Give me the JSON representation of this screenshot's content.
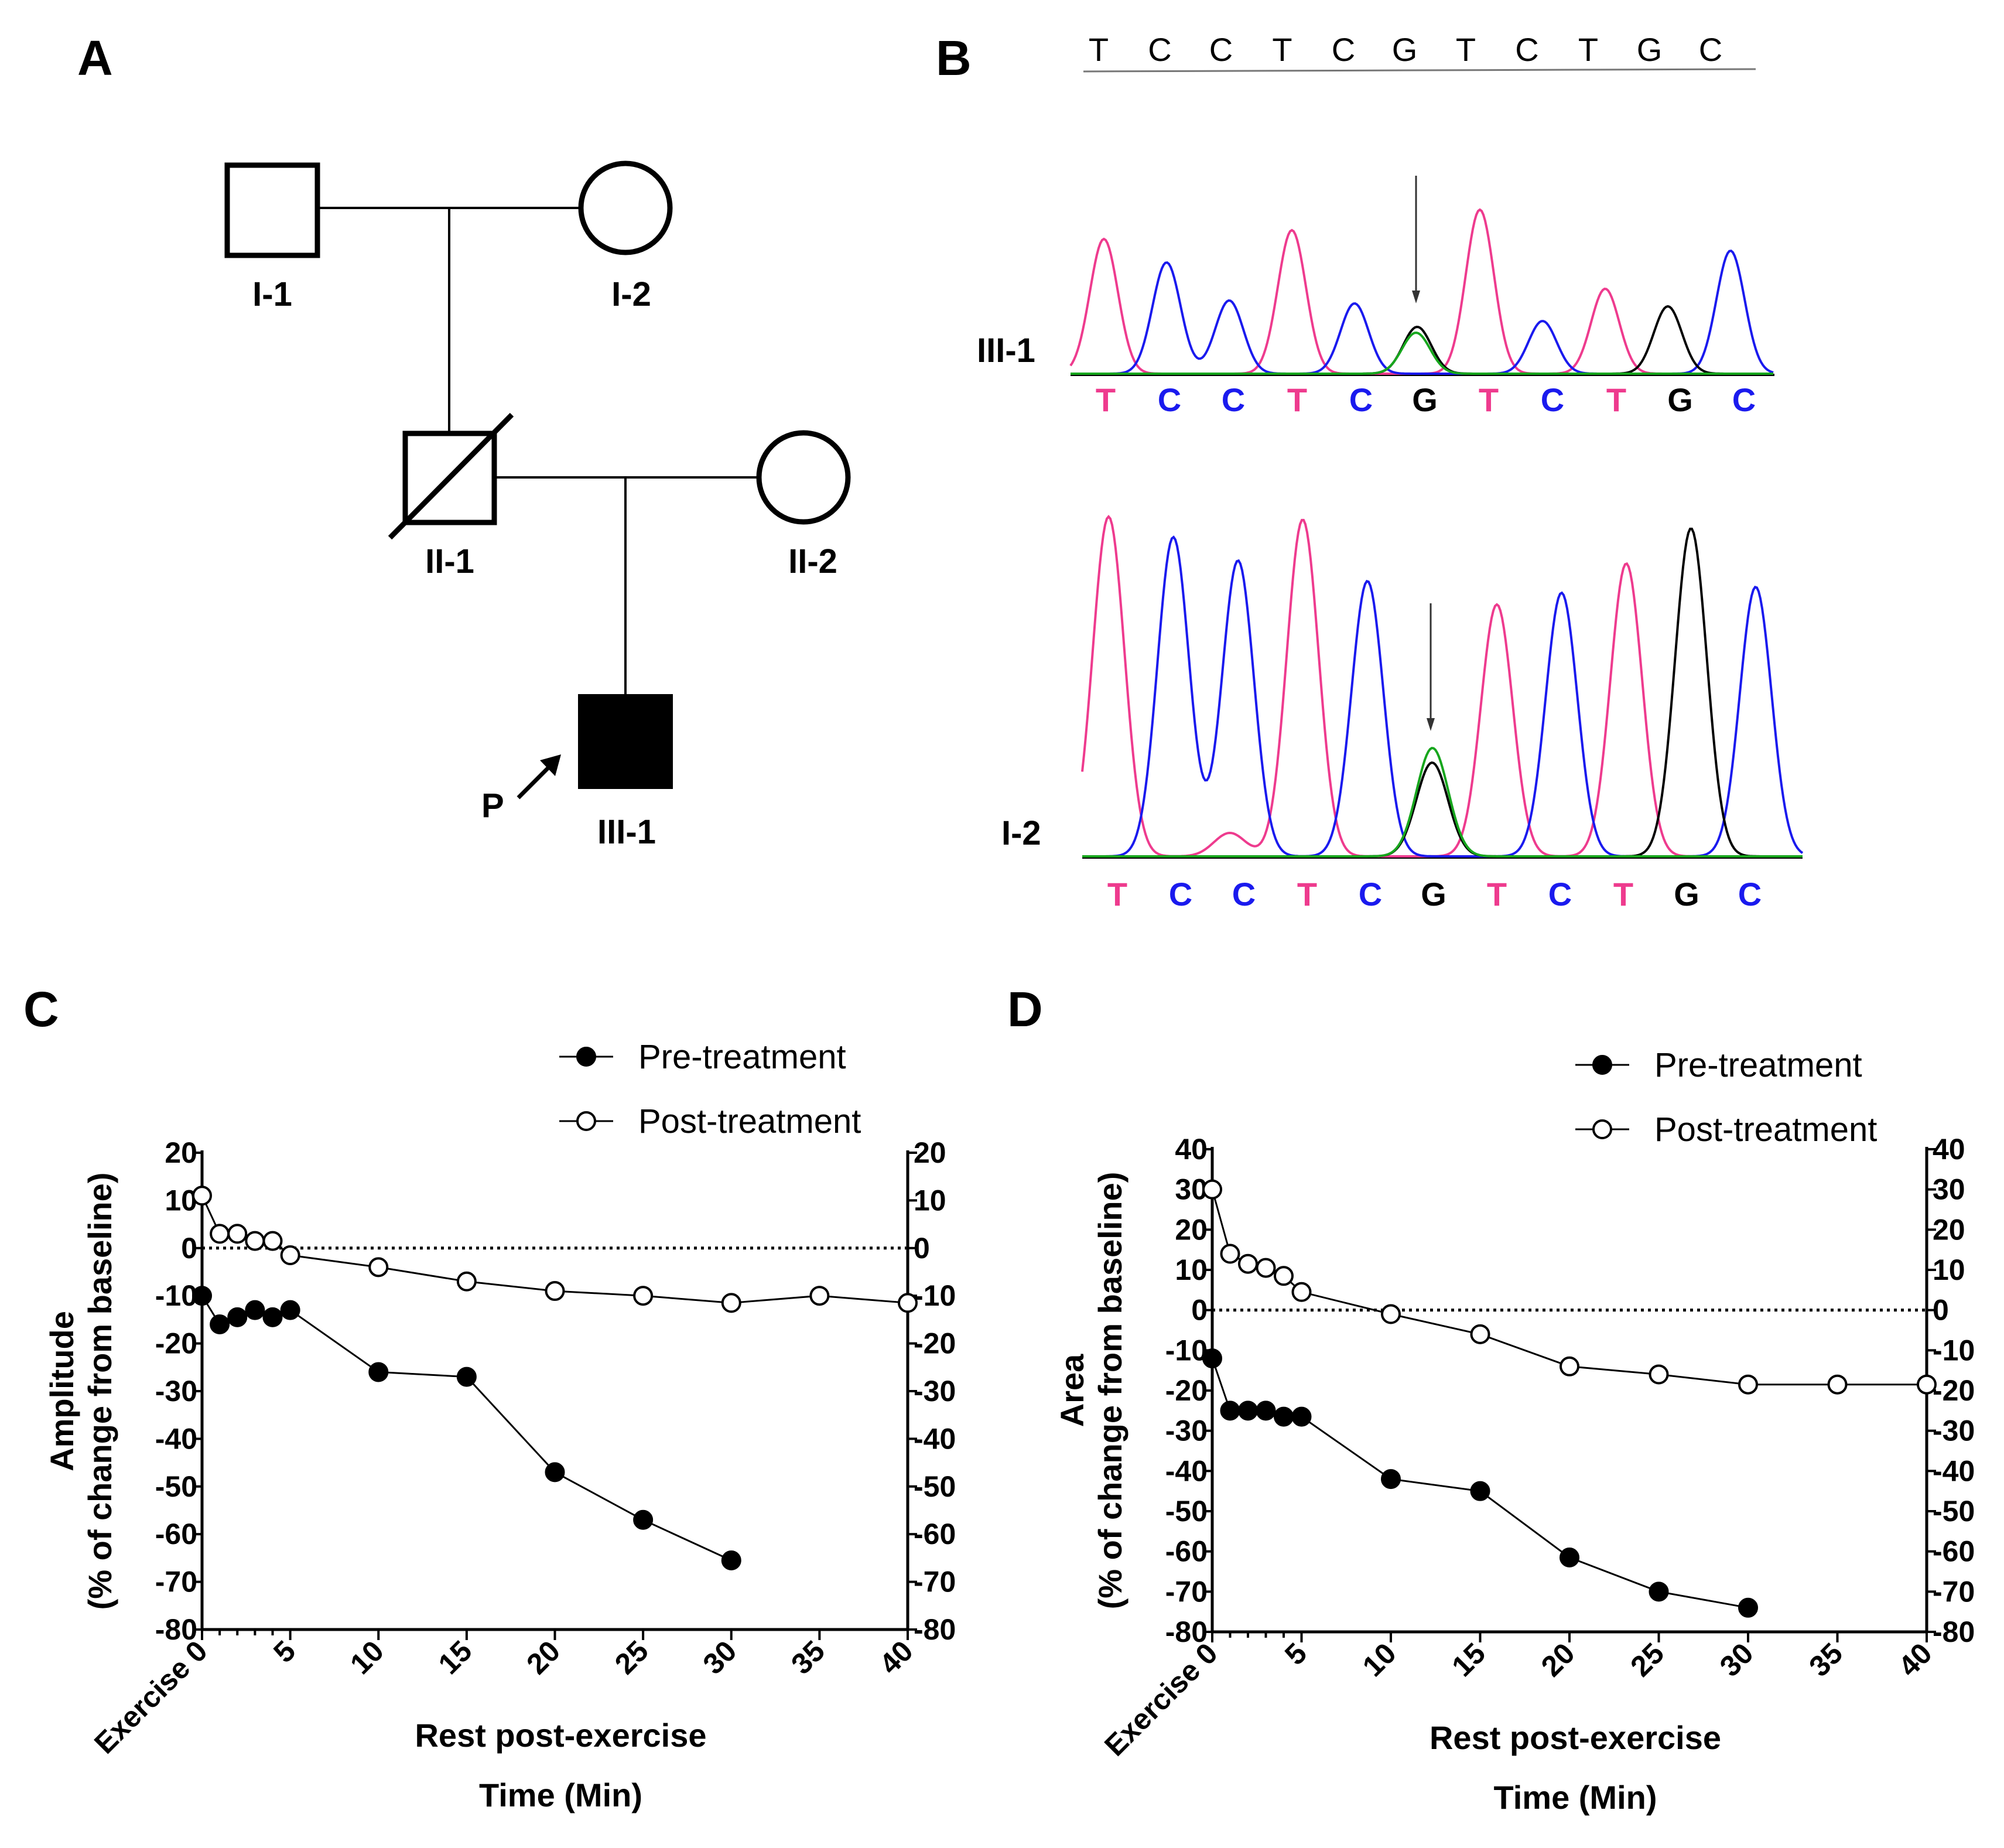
{
  "panels": {
    "a": {
      "letter": "A",
      "individuals": [
        {
          "id": "I-1",
          "sex": "male",
          "status": "unaffected"
        },
        {
          "id": "I-2",
          "sex": "female",
          "status": "unaffected"
        },
        {
          "id": "II-1",
          "sex": "male",
          "status": "deceased"
        },
        {
          "id": "II-2",
          "sex": "female",
          "status": "unaffected"
        },
        {
          "id": "III-1",
          "sex": "male",
          "status": "affected proband"
        }
      ],
      "proband_marker": "P"
    },
    "b": {
      "letter": "B",
      "reference_sequence": [
        "T",
        "C",
        "C",
        "T",
        "C",
        "G",
        "T",
        "C",
        "T",
        "G",
        "C"
      ],
      "traces": [
        {
          "label": "III-1",
          "bases": [
            "T",
            "C",
            "C",
            "T",
            "C",
            "G",
            "T",
            "C",
            "T",
            "G",
            "C"
          ]
        },
        {
          "label": "I-2",
          "bases": [
            "T",
            "C",
            "C",
            "T",
            "C",
            "G",
            "T",
            "C",
            "T",
            "G",
            "C"
          ]
        }
      ],
      "base_colors": {
        "T": "#ee3b8e",
        "C": "#1a1aee",
        "G": "#000000",
        "A": "#17a61d"
      },
      "arrow_icon": "down-arrow-icon"
    },
    "c": {
      "letter": "C"
    },
    "d": {
      "letter": "D"
    }
  },
  "chart_data": [
    {
      "type": "line",
      "panel": "C",
      "ylabel_line1": "Amplitude",
      "ylabel_line2": "(% of change from baseline)",
      "xlabel_line1": "Rest post-exercise",
      "xlabel_line2": "Time (Min)",
      "x_first_tick_label": "Exercise 0",
      "xlim": [
        0,
        40
      ],
      "ylim": [
        -80,
        20
      ],
      "xticks": [
        0,
        5,
        10,
        15,
        20,
        25,
        30,
        35,
        40
      ],
      "yticks": [
        20,
        10,
        0,
        -10,
        -20,
        -30,
        -40,
        -50,
        -60,
        -70,
        -80
      ],
      "reference_line": 0,
      "legend_position": "top-right",
      "series": [
        {
          "name": "Pre-treatment",
          "marker": "filled-circle",
          "x": [
            0,
            1,
            2,
            3,
            4,
            5,
            10,
            15,
            20,
            25,
            30
          ],
          "y": [
            -10,
            -16,
            -14.5,
            -13,
            -14.5,
            -13,
            -26,
            -27,
            -47,
            -57,
            -65.5
          ]
        },
        {
          "name": "Post-treatment",
          "marker": "open-circle",
          "x": [
            0,
            1,
            2,
            3,
            4,
            5,
            10,
            15,
            20,
            25,
            30,
            35,
            40
          ],
          "y": [
            11,
            3,
            3,
            1.5,
            1.5,
            -1.5,
            -4,
            -7,
            -9,
            -10,
            -11.5,
            -10,
            -11.5
          ]
        }
      ]
    },
    {
      "type": "line",
      "panel": "D",
      "ylabel_line1": "Area",
      "ylabel_line2": "(% of change from baseline)",
      "xlabel_line1": "Rest post-exercise",
      "xlabel_line2": "Time (Min)",
      "x_first_tick_label": "Exercise 0",
      "xlim": [
        0,
        40
      ],
      "ylim": [
        -80,
        40
      ],
      "xticks": [
        0,
        5,
        10,
        15,
        20,
        25,
        30,
        35,
        40
      ],
      "yticks": [
        40,
        30,
        20,
        10,
        0,
        -10,
        -20,
        -30,
        -40,
        -50,
        -60,
        -70,
        -80
      ],
      "reference_line": 0,
      "legend_position": "top-right",
      "series": [
        {
          "name": "Pre-treatment",
          "marker": "filled-circle",
          "x": [
            0,
            1,
            2,
            3,
            4,
            5,
            10,
            15,
            20,
            25,
            30
          ],
          "y": [
            -12,
            -25,
            -25,
            -25,
            -26.5,
            -26.5,
            -42,
            -45,
            -61.5,
            -70,
            -74
          ]
        },
        {
          "name": "Post-treatment",
          "marker": "open-circle",
          "x": [
            0,
            1,
            2,
            3,
            4,
            5,
            10,
            15,
            20,
            25,
            30,
            35,
            40
          ],
          "y": [
            30,
            14,
            11.5,
            10.5,
            8.5,
            4.5,
            -1,
            -6,
            -14,
            -16,
            -18.5,
            -18.5,
            -18.5
          ]
        }
      ]
    }
  ]
}
